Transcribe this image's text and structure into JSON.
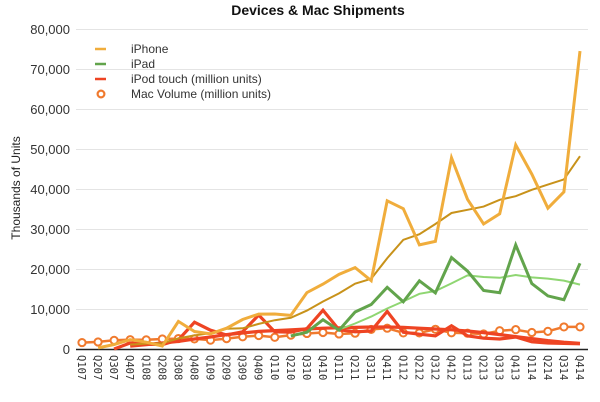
{
  "chart_data": {
    "type": "line",
    "title": "Devices & Mac Shipments",
    "xlabel": "",
    "ylabel": "Thousands of Units",
    "ylim": [
      0,
      80000
    ],
    "yticks": [
      0,
      10000,
      20000,
      30000,
      40000,
      50000,
      60000,
      70000,
      80000
    ],
    "ytick_labels": [
      "0",
      "10,000",
      "20,000",
      "30,000",
      "40,000",
      "50,000",
      "60,000",
      "70,000",
      "80,000"
    ],
    "grid": true,
    "legend_position": "top-left",
    "categories": [
      "Q107",
      "Q207",
      "Q307",
      "Q407",
      "Q108",
      "Q208",
      "Q308",
      "Q408",
      "Q109",
      "Q209",
      "Q309",
      "Q409",
      "Q110",
      "Q210",
      "Q310",
      "Q410",
      "Q111",
      "Q211",
      "Q311",
      "Q411",
      "Q112",
      "Q212",
      "Q312",
      "Q412",
      "Q113",
      "Q213",
      "Q313",
      "Q413",
      "Q114",
      "Q214",
      "Q314",
      "Q414"
    ],
    "series": [
      {
        "name": "iPhone",
        "color": "#f0ad3c",
        "marker": "none",
        "values": [
          null,
          270,
          1119,
          2315,
          1703,
          717,
          6892,
          4363,
          3793,
          5208,
          7367,
          8737,
          8752,
          8398,
          14102,
          16235,
          18647,
          20338,
          17070,
          37044,
          35064,
          26028,
          26910,
          47789,
          37430,
          31241,
          33797,
          51025,
          43719,
          35203,
          39272,
          74468
        ]
      },
      {
        "name": "iPhone trend",
        "color": "#c8921a",
        "marker": "none",
        "legend": false,
        "values": [
          null,
          null,
          null,
          1100,
          1350,
          1460,
          2660,
          3400,
          3940,
          5060,
          5180,
          6270,
          7200,
          7810,
          9600,
          11870,
          13900,
          16320,
          17560,
          22700,
          27300,
          28700,
          31250,
          34000,
          34800,
          35600,
          37300,
          38200,
          39800,
          41100,
          42400,
          48200
        ]
      },
      {
        "name": "iPad",
        "color": "#62a44c",
        "marker": "none",
        "values": [
          null,
          null,
          null,
          null,
          null,
          null,
          null,
          null,
          null,
          null,
          null,
          null,
          null,
          3270,
          4190,
          7331,
          4694,
          9246,
          11123,
          15434,
          11798,
          17042,
          14036,
          22860,
          19477,
          14617,
          14079,
          26035,
          16350,
          13276,
          12316,
          21419
        ]
      },
      {
        "name": "iPad trend",
        "color": "#8fd672",
        "marker": "none",
        "legend": false,
        "values": [
          null,
          null,
          null,
          null,
          null,
          null,
          null,
          null,
          null,
          null,
          null,
          null,
          null,
          null,
          null,
          null,
          4870,
          6370,
          8100,
          10120,
          11900,
          13800,
          14500,
          16400,
          18400,
          18000,
          17800,
          18500,
          17900,
          17600,
          17100,
          16100
        ]
      },
      {
        "name": "iPod touch (million units)",
        "color": "#ee4423",
        "marker": "none",
        "values": [
          null,
          null,
          0,
          1500,
          1200,
          1100,
          2300,
          6700,
          4700,
          3500,
          4300,
          8500,
          4300,
          4200,
          5100,
          9700,
          4800,
          4300,
          4500,
          9400,
          4200,
          3700,
          3300,
          5800,
          3300,
          2700,
          2500,
          3000,
          1800,
          1500,
          1400,
          1300
        ]
      },
      {
        "name": "iPod touch trend",
        "color": "#ee4423",
        "marker": "none",
        "legend": false,
        "values": [
          null,
          null,
          null,
          700,
          1100,
          1500,
          1900,
          2500,
          3000,
          3600,
          4000,
          4400,
          4600,
          4800,
          5000,
          5200,
          5300,
          5400,
          5500,
          5500,
          5400,
          5200,
          5000,
          4800,
          4500,
          4100,
          3600,
          3100,
          2600,
          2100,
          1700,
          1400
        ]
      },
      {
        "name": "Mac Volume (million units)",
        "color": "#f07a2e",
        "marker": "circle",
        "values": [
          1606,
          1764,
          2164,
          2319,
          2289,
          2496,
          2611,
          2524,
          2216,
          2603,
          3053,
          3362,
          2943,
          3472,
          3885,
          4134,
          3760,
          3947,
          4894,
          5198,
          4017,
          4020,
          4923,
          4061,
          3952,
          3754,
          4574,
          4837,
          4136,
          4413,
          5520,
          5519
        ]
      }
    ],
    "legend": [
      {
        "label": "iPhone",
        "color": "#f0ad3c",
        "marker": "line"
      },
      {
        "label": "iPad",
        "color": "#62a44c",
        "marker": "line"
      },
      {
        "label": "iPod touch (million units)",
        "color": "#ee4423",
        "marker": "line"
      },
      {
        "label": "Mac Volume (million units)",
        "color": "#f07a2e",
        "marker": "circle"
      }
    ]
  }
}
